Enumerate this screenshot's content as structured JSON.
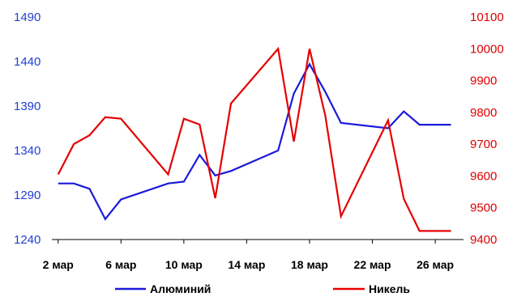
{
  "chart_data": {
    "type": "line",
    "title": "",
    "xlabel": "",
    "ylabel_left": "",
    "ylabel_right": "",
    "grid": false,
    "legend_position": "bottom",
    "x_tick_labels": [
      "2 мар",
      "6 мар",
      "10 мар",
      "14 мар",
      "18 мар",
      "22 мар",
      "26 мар"
    ],
    "x_tick_days": [
      2,
      6,
      10,
      14,
      18,
      22,
      26
    ],
    "x_range_days": [
      1.6,
      27.8
    ],
    "y_left": {
      "range": [
        1240,
        1490
      ],
      "ticks": [
        1240,
        1290,
        1340,
        1390,
        1440,
        1490
      ]
    },
    "y_right": {
      "range": [
        9400,
        10100
      ],
      "ticks": [
        9400,
        9500,
        9600,
        9700,
        9800,
        9900,
        10000,
        10100
      ]
    },
    "series": [
      {
        "name": "Алюминий",
        "axis": "left",
        "color": "#1a1adb",
        "x_days": [
          2,
          3,
          4,
          5,
          6,
          9,
          10,
          11,
          12,
          13,
          16,
          17,
          18,
          19,
          20,
          23,
          24,
          25,
          27
        ],
        "values": [
          1303,
          1303,
          1297,
          1263,
          1285,
          1303,
          1305,
          1335,
          1312,
          1317,
          1340,
          1404,
          1437,
          1406,
          1371,
          1365,
          1384,
          1369,
          1369
        ]
      },
      {
        "name": "Никель",
        "axis": "right",
        "color": "#e60000",
        "x_days": [
          2,
          3,
          4,
          5,
          6,
          9,
          10,
          11,
          12,
          13,
          16,
          17,
          18,
          19,
          20,
          23,
          24,
          25,
          27
        ],
        "values": [
          9605,
          9700,
          9728,
          9785,
          9780,
          9605,
          9780,
          9762,
          9530,
          9828,
          10000,
          9708,
          10000,
          9790,
          9473,
          9775,
          9528,
          9427,
          9427
        ]
      }
    ]
  }
}
